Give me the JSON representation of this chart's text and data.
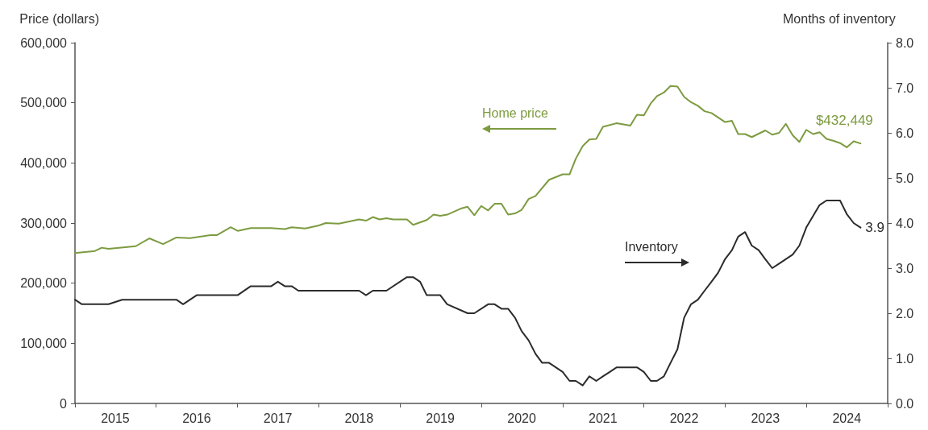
{
  "chart_data": {
    "type": "line",
    "ylabel": "Price (dollars)",
    "y2label": "Months of inventory",
    "xlim": [
      "2015-01",
      "2025-01"
    ],
    "xticks": [
      {
        "value": "2015-07",
        "label": "2015"
      },
      {
        "value": "2016-07",
        "label": "2016"
      },
      {
        "value": "2017-07",
        "label": "2017"
      },
      {
        "value": "2018-07",
        "label": "2018"
      },
      {
        "value": "2019-07",
        "label": "2019"
      },
      {
        "value": "2020-07",
        "label": "2020"
      },
      {
        "value": "2021-07",
        "label": "2021"
      },
      {
        "value": "2022-07",
        "label": "2022"
      },
      {
        "value": "2023-07",
        "label": "2023"
      },
      {
        "value": "2024-07",
        "label": "2024"
      }
    ],
    "ylim": [
      0,
      600000
    ],
    "yticks": [
      {
        "value": 0,
        "label": "0"
      },
      {
        "value": 100000,
        "label": "100,000"
      },
      {
        "value": 200000,
        "label": "200,000"
      },
      {
        "value": 300000,
        "label": "300,000"
      },
      {
        "value": 400000,
        "label": "400,000"
      },
      {
        "value": 500000,
        "label": "500,000"
      },
      {
        "value": 600000,
        "label": "600,000"
      }
    ],
    "y2lim": [
      0,
      8
    ],
    "y2ticks": [
      {
        "value": 0,
        "label": "0.0"
      },
      {
        "value": 1,
        "label": "1.0"
      },
      {
        "value": 2,
        "label": "2.0"
      },
      {
        "value": 3,
        "label": "3.0"
      },
      {
        "value": 4,
        "label": "4.0"
      },
      {
        "value": 5,
        "label": "5.0"
      },
      {
        "value": 6,
        "label": "6.0"
      },
      {
        "value": 7,
        "label": "7.0"
      },
      {
        "value": 8,
        "label": "8.0"
      }
    ],
    "grid": false,
    "legend": false,
    "marker": "none",
    "series": [
      {
        "name": "Home price",
        "color": "#7d9b40",
        "x": [
          "2015-01",
          "2015-04",
          "2015-05",
          "2015-06",
          "2015-10",
          "2015-12",
          "2016-02",
          "2016-04",
          "2016-06",
          "2016-09",
          "2016-10",
          "2016-12",
          "2017-01",
          "2017-03",
          "2017-06",
          "2017-08",
          "2017-09",
          "2017-11",
          "2018-01",
          "2018-02",
          "2018-04",
          "2018-07",
          "2018-08",
          "2018-09",
          "2018-10",
          "2018-11",
          "2018-12",
          "2019-02",
          "2019-03",
          "2019-05",
          "2019-06",
          "2019-07",
          "2019-08",
          "2019-10",
          "2019-11",
          "2019-12",
          "2020-01",
          "2020-02",
          "2020-03",
          "2020-04",
          "2020-05",
          "2020-06",
          "2020-07",
          "2020-08",
          "2020-09",
          "2020-11",
          "2021-01",
          "2021-02",
          "2021-03",
          "2021-04",
          "2021-05",
          "2021-06",
          "2021-07",
          "2021-09",
          "2021-11",
          "2021-12",
          "2022-01",
          "2022-02",
          "2022-03",
          "2022-04",
          "2022-05",
          "2022-06",
          "2022-07",
          "2022-08",
          "2022-09",
          "2022-10",
          "2022-11",
          "2023-01",
          "2023-02",
          "2023-03",
          "2023-04",
          "2023-05",
          "2023-07",
          "2023-08",
          "2023-09",
          "2023-10",
          "2023-11",
          "2023-12",
          "2024-01",
          "2024-02",
          "2024-03",
          "2024-04",
          "2024-05",
          "2024-06",
          "2024-07",
          "2024-08",
          "2024-09"
        ],
        "values": [
          250000,
          253500,
          259000,
          257000,
          261500,
          274500,
          265000,
          276000,
          275000,
          280000,
          280000,
          293000,
          287000,
          291500,
          291500,
          290000,
          293000,
          291000,
          296000,
          300000,
          299000,
          306000,
          304000,
          310000,
          306000,
          308000,
          306000,
          306000,
          297000,
          305000,
          314000,
          312000,
          314000,
          324000,
          327000,
          313000,
          328500,
          321000,
          332000,
          332000,
          314000,
          316000,
          322000,
          340000,
          345000,
          372000,
          381000,
          381000,
          407000,
          428000,
          439000,
          440000,
          460000,
          466000,
          462000,
          480000,
          479000,
          499000,
          511000,
          517000,
          528000,
          527000,
          510000,
          501000,
          495000,
          486000,
          483000,
          468000,
          470000,
          448000,
          448000,
          443000,
          454000,
          447000,
          450000,
          465000,
          446000,
          435000,
          455000,
          448000,
          451000,
          440000,
          437000,
          433000,
          426000,
          436000,
          432449
        ],
        "value_labels": [
          null,
          null,
          null,
          null,
          null,
          null,
          null,
          null,
          null,
          null,
          null,
          null,
          null,
          null,
          null,
          null,
          null,
          null,
          null,
          null,
          null,
          null,
          null,
          null,
          null,
          null,
          null,
          null,
          null,
          null,
          null,
          null,
          null,
          null,
          null,
          null,
          null,
          null,
          null,
          null,
          null,
          null,
          null,
          null,
          null,
          null,
          null,
          null,
          null,
          null,
          null,
          null,
          null,
          null,
          null,
          null,
          null,
          null,
          null,
          null,
          null,
          null,
          null,
          null,
          null,
          null,
          null,
          null,
          null,
          null,
          null,
          null,
          null,
          null,
          null,
          null,
          null,
          null,
          null,
          null,
          null,
          null,
          null,
          null,
          null,
          null,
          "$432,449"
        ]
      },
      {
        "name": "Inventory",
        "color": "#2b2b2b",
        "axis": "y2",
        "x": [
          "2015-01",
          "2015-02",
          "2015-06",
          "2015-08",
          "2016-04",
          "2016-05",
          "2016-07",
          "2017-01",
          "2017-03",
          "2017-06",
          "2017-07",
          "2017-08",
          "2017-09",
          "2017-10",
          "2018-03",
          "2018-07",
          "2018-08",
          "2018-09",
          "2018-11",
          "2019-02",
          "2019-03",
          "2019-04",
          "2019-05",
          "2019-07",
          "2019-08",
          "2019-11",
          "2019-12",
          "2020-02",
          "2020-03",
          "2020-04",
          "2020-05",
          "2020-06",
          "2020-07",
          "2020-08",
          "2020-09",
          "2020-10",
          "2020-11",
          "2021-01",
          "2021-02",
          "2021-03",
          "2021-04",
          "2021-05",
          "2021-06",
          "2021-07",
          "2021-08",
          "2021-09",
          "2021-12",
          "2022-01",
          "2022-02",
          "2022-03",
          "2022-04",
          "2022-05",
          "2022-06",
          "2022-07",
          "2022-08",
          "2022-09",
          "2022-10",
          "2022-11",
          "2022-12",
          "2023-01",
          "2023-02",
          "2023-03",
          "2023-04",
          "2023-05",
          "2023-06",
          "2023-07",
          "2023-08",
          "2023-09",
          "2023-10",
          "2023-11",
          "2023-12",
          "2024-01",
          "2024-03",
          "2024-04",
          "2024-06",
          "2024-07",
          "2024-08",
          "2024-09"
        ],
        "values": [
          2.3,
          2.2,
          2.2,
          2.3,
          2.3,
          2.2,
          2.4,
          2.4,
          2.6,
          2.6,
          2.7,
          2.6,
          2.6,
          2.5,
          2.5,
          2.5,
          2.4,
          2.5,
          2.5,
          2.8,
          2.8,
          2.7,
          2.4,
          2.4,
          2.2,
          2.0,
          2.0,
          2.2,
          2.2,
          2.1,
          2.1,
          1.9,
          1.6,
          1.4,
          1.1,
          0.9,
          0.9,
          0.7,
          0.5,
          0.5,
          0.4,
          0.6,
          0.5,
          0.6,
          0.7,
          0.8,
          0.8,
          0.7,
          0.5,
          0.5,
          0.6,
          0.9,
          1.2,
          1.9,
          2.2,
          2.3,
          2.5,
          2.7,
          2.9,
          3.2,
          3.4,
          3.7,
          3.8,
          3.5,
          3.4,
          3.2,
          3.0,
          3.1,
          3.2,
          3.3,
          3.5,
          3.9,
          4.4,
          4.5,
          4.5,
          4.2,
          4.0,
          3.9
        ],
        "value_labels": [
          null,
          null,
          null,
          null,
          null,
          null,
          null,
          null,
          null,
          null,
          null,
          null,
          null,
          null,
          null,
          null,
          null,
          null,
          null,
          null,
          null,
          null,
          null,
          null,
          null,
          null,
          null,
          null,
          null,
          null,
          null,
          null,
          null,
          null,
          null,
          null,
          null,
          null,
          null,
          null,
          null,
          null,
          null,
          null,
          null,
          null,
          null,
          null,
          null,
          null,
          null,
          null,
          null,
          null,
          null,
          null,
          null,
          null,
          null,
          null,
          null,
          null,
          null,
          null,
          null,
          null,
          null,
          null,
          null,
          null,
          null,
          null,
          null,
          null,
          null,
          null,
          null,
          "3.9"
        ]
      }
    ]
  }
}
